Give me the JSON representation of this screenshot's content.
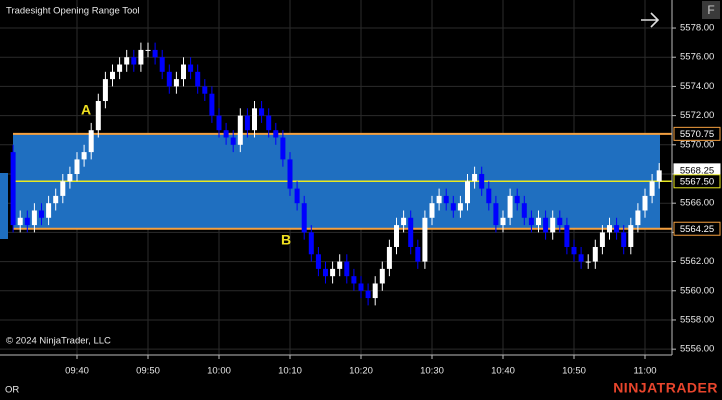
{
  "chart_data": {
    "type": "candlestick",
    "title": "Tradesight Opening Range Tool",
    "copyright": "© 2024 NinjaTrader, LLC",
    "footer_label": "OR",
    "brand": "NINJATRADER",
    "button": "F",
    "annotations": [
      "A",
      "B"
    ],
    "categories": [
      null,
      null,
      null,
      null,
      null,
      null,
      null,
      null,
      null,
      "09:40",
      null,
      null,
      null,
      null,
      null,
      null,
      null,
      null,
      null,
      "09:50",
      null,
      null,
      null,
      null,
      null,
      null,
      null,
      null,
      null,
      "10:00",
      null,
      null,
      null,
      null,
      null,
      null,
      null,
      null,
      null,
      "10:10",
      null,
      null,
      null,
      null,
      null,
      null,
      null,
      null,
      null,
      "10:20",
      null,
      null,
      null,
      null,
      null,
      null,
      null,
      null,
      null,
      "10:30",
      null,
      null,
      null,
      null,
      null,
      null,
      null,
      null,
      null,
      "10:40",
      null,
      null,
      null,
      null,
      null,
      null,
      null,
      null,
      null,
      "10:50",
      null,
      null,
      null,
      null,
      null,
      null,
      null,
      null,
      null,
      "11:00",
      null,
      null
    ],
    "open": [
      5569.5,
      5564.5,
      5565,
      5564.5,
      5565.5,
      5565,
      5566,
      5566.5,
      5567.5,
      5568,
      5569,
      5569.5,
      5571,
      5573,
      5574.5,
      5575,
      5575.5,
      5576,
      5575.5,
      5576.5,
      5576.5,
      5576,
      5575,
      5574,
      5574.5,
      5575.5,
      5575,
      5574,
      5573.5,
      5572,
      5571,
      5570.5,
      5570,
      5572,
      5571,
      5572.5,
      5572,
      5571,
      5570.5,
      5569,
      5567,
      5566,
      5564,
      5562.5,
      5561.5,
      5561,
      5561.5,
      5562,
      5561,
      5560.5,
      5560,
      5559.5,
      5560.5,
      5561.5,
      5563,
      5564.5,
      5565,
      5563,
      5562,
      5565,
      5566,
      5566.5,
      5566,
      5565.5,
      5566,
      5567.5,
      5568,
      5567,
      5566,
      5564.5,
      5565,
      5566.5,
      5566,
      5565,
      5564.5,
      5565,
      5564,
      5565,
      5564.5,
      5563,
      5562.5,
      5562,
      5562,
      5563,
      5564,
      5564.5,
      5564,
      5563,
      5564.5,
      5565.5,
      5566.5,
      5567.5
    ],
    "high": [
      5570,
      5565.5,
      5565.5,
      5566,
      5566,
      5566.5,
      5567,
      5568,
      5568.5,
      5569.5,
      5570,
      5571.5,
      5573.5,
      5575,
      5575.5,
      5576,
      5576.5,
      5576.5,
      5577,
      5577,
      5577,
      5576.5,
      5575.5,
      5575,
      5576,
      5576,
      5575.5,
      5574.5,
      5574,
      5572.5,
      5571.5,
      5571,
      5572.5,
      5572.5,
      5573,
      5573,
      5572.5,
      5571.5,
      5571,
      5569.5,
      5567.5,
      5566.5,
      5564.5,
      5563,
      5562,
      5562,
      5562.5,
      5562.5,
      5561.5,
      5561,
      5560.5,
      5561,
      5562,
      5563.5,
      5565,
      5565.5,
      5565.5,
      5563.5,
      5565.5,
      5566.5,
      5567,
      5567,
      5566.5,
      5566.5,
      5568,
      5568.5,
      5568.5,
      5567.5,
      5566.5,
      5565.5,
      5567,
      5567,
      5566.5,
      5565.5,
      5565.5,
      5565.5,
      5565.5,
      5565.5,
      5565,
      5563.5,
      5563,
      5562.5,
      5563.5,
      5564.5,
      5565,
      5565,
      5564.5,
      5565,
      5566,
      5567,
      5568,
      5568.75
    ],
    "low": [
      5564,
      5564,
      5564,
      5564,
      5564.5,
      5564.5,
      5565.5,
      5566,
      5567,
      5567.5,
      5568.5,
      5569,
      5570.5,
      5572.5,
      5574,
      5574.5,
      5575,
      5575,
      5575,
      5576,
      5575.5,
      5574.5,
      5573.5,
      5573.5,
      5574,
      5574.5,
      5573.5,
      5573,
      5571.5,
      5570.5,
      5570,
      5569.5,
      5569.5,
      5570.5,
      5570.5,
      5571.5,
      5570.5,
      5570,
      5568.5,
      5566.5,
      5565.5,
      5563.5,
      5562,
      5561,
      5560.5,
      5560.5,
      5561,
      5560.5,
      5560,
      5559.5,
      5559,
      5559,
      5560,
      5561,
      5562.5,
      5564,
      5562.5,
      5561.5,
      5561.5,
      5564.5,
      5565.5,
      5565.5,
      5565,
      5565,
      5565.5,
      5567,
      5566.5,
      5565.5,
      5564,
      5564,
      5564.5,
      5565.5,
      5564.5,
      5564,
      5564,
      5563.5,
      5563.5,
      5564,
      5562.5,
      5562,
      5561.5,
      5561.5,
      5561.5,
      5562.5,
      5563.5,
      5563.5,
      5562.5,
      5562.5,
      5564,
      5565,
      5566,
      5567
    ],
    "close": [
      5564.5,
      5565,
      5564.5,
      5565.5,
      5565,
      5566,
      5566.5,
      5567.5,
      5568,
      5569,
      5569.5,
      5571,
      5573,
      5574.5,
      5575,
      5575.5,
      5576,
      5575.5,
      5576.5,
      5576.5,
      5576,
      5575,
      5574,
      5574.5,
      5575.5,
      5575,
      5574,
      5573.5,
      5572,
      5571,
      5570.5,
      5570,
      5572,
      5571,
      5572.5,
      5572,
      5571,
      5570.5,
      5569,
      5567,
      5566,
      5564,
      5562.5,
      5561.5,
      5561,
      5561.5,
      5562,
      5561,
      5560.5,
      5560,
      5559.5,
      5560.5,
      5561.5,
      5563,
      5564.5,
      5565,
      5563,
      5562,
      5565,
      5566,
      5566.5,
      5566,
      5565.5,
      5566,
      5567.5,
      5568,
      5567,
      5566,
      5564.5,
      5565,
      5566.5,
      5566,
      5565,
      5564.5,
      5565,
      5564,
      5565,
      5564.5,
      5563,
      5562.5,
      5562,
      5562,
      5563,
      5564,
      5564.5,
      5564,
      5563,
      5564.5,
      5565.5,
      5566.5,
      5567.5,
      5568.25
    ],
    "up_color": "#ffffff",
    "down_color": "#0000ff",
    "range": {
      "high": 5570.75,
      "mid": 5567.5,
      "low": 5564.25,
      "fill": "#1f6fc0",
      "edge_color": "#f4a040",
      "mid_color": "#e8e820"
    },
    "price_markers": [
      {
        "value": 5570.75,
        "label": "5570.75",
        "color": "#f4a040"
      },
      {
        "value": 5568.25,
        "label": "5568.25",
        "color": "#ffffff"
      },
      {
        "value": 5567.5,
        "label": "5567.50",
        "color": "#e8e820"
      },
      {
        "value": 5564.25,
        "label": "5564.25",
        "color": "#f4a040"
      }
    ],
    "ylim": [
      5555.6,
      5579.92
    ],
    "yticks": [
      {
        "value": 5556,
        "label": "5556.00"
      },
      {
        "value": 5558,
        "label": "5558.00"
      },
      {
        "value": 5560,
        "label": "5560.00"
      },
      {
        "value": 5562,
        "label": "5562.00"
      },
      {
        "value": 5564,
        "label": "5564.00"
      },
      {
        "value": 5566,
        "label": "5566.00"
      },
      {
        "value": 5568,
        "label": "5568.00"
      },
      {
        "value": 5570,
        "label": "5570.00"
      },
      {
        "value": 5572,
        "label": "5572.00"
      },
      {
        "value": 5574,
        "label": "5574.00"
      },
      {
        "value": 5576,
        "label": "5576.00"
      },
      {
        "value": 5578,
        "label": "5578.00"
      }
    ],
    "grid": true
  }
}
